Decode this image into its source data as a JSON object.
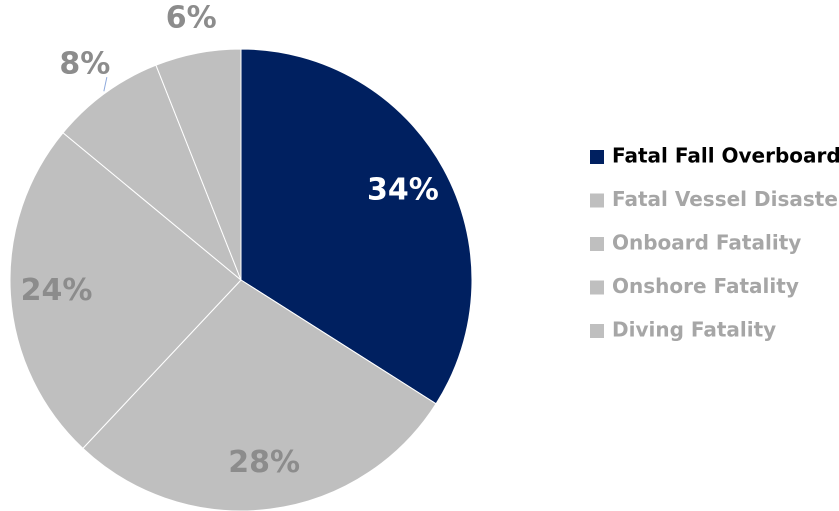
{
  "chart_data": {
    "type": "pie",
    "categories": [
      "Fatal Fall Overboard",
      "Fatal Vessel Disaster",
      "Onboard Fatality",
      "Onshore Fatality",
      "Diving Fatality"
    ],
    "values": [
      34,
      28,
      24,
      8,
      6
    ],
    "value_labels": [
      "34%",
      "28%",
      "24%",
      "8%",
      "6%"
    ],
    "colors": [
      "#002060",
      "#bfbfbf",
      "#bfbfbf",
      "#bfbfbf",
      "#bfbfbf"
    ],
    "legend": "right"
  }
}
